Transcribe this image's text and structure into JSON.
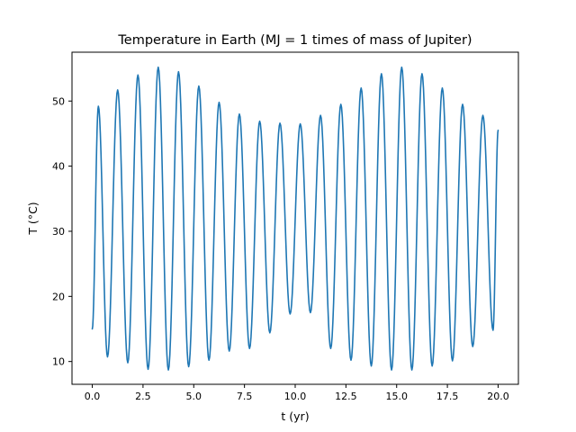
{
  "chart_data": {
    "type": "line",
    "title": "Temperature in Earth (MJ = 1 times of mass of Jupiter)",
    "xlabel": "t (yr)",
    "ylabel": "T (°C)",
    "xlim": [
      -1.0,
      21.0
    ],
    "ylim": [
      6.5,
      57.5
    ],
    "xticks": [
      0.0,
      2.5,
      5.0,
      7.5,
      10.0,
      12.5,
      15.0,
      17.5,
      20.0
    ],
    "xtick_labels": [
      "0.0",
      "2.5",
      "5.0",
      "7.5",
      "10.0",
      "12.5",
      "15.0",
      "17.5",
      "20.0"
    ],
    "yticks": [
      10,
      20,
      30,
      40,
      50
    ],
    "ytick_labels": [
      "10",
      "20",
      "30",
      "40",
      "50"
    ],
    "grid": false,
    "series": [
      {
        "color": "#1f77b4",
        "x": [
          0.0,
          0.3,
          0.75,
          1.25,
          1.75,
          2.25,
          2.75,
          3.25,
          3.75,
          4.25,
          4.75,
          5.25,
          5.75,
          6.25,
          6.75,
          7.25,
          7.75,
          8.25,
          8.75,
          9.25,
          9.75,
          10.25,
          10.75,
          11.25,
          11.75,
          12.25,
          12.75,
          13.25,
          13.75,
          14.25,
          14.75,
          15.25,
          15.75,
          16.25,
          16.75,
          17.25,
          17.75,
          18.25,
          18.75,
          19.25,
          19.75,
          20.0
        ],
        "y": [
          15.0,
          49.2,
          10.7,
          51.7,
          9.8,
          54.0,
          8.8,
          55.2,
          8.7,
          54.5,
          9.2,
          52.3,
          10.2,
          49.8,
          11.6,
          48.0,
          12.0,
          46.9,
          14.4,
          46.6,
          17.3,
          46.5,
          17.5,
          47.8,
          12.0,
          49.5,
          10.2,
          52.0,
          9.3,
          54.2,
          8.7,
          55.2,
          8.7,
          54.2,
          9.3,
          52.0,
          10.1,
          49.5,
          12.3,
          47.8,
          14.8,
          45.5
        ]
      }
    ]
  }
}
